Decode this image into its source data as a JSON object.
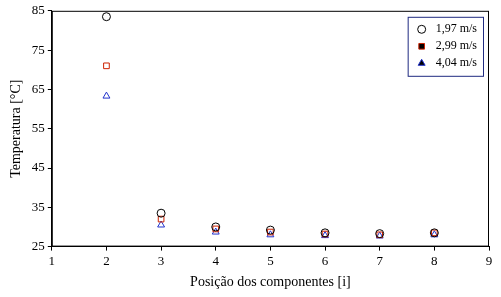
{
  "chart_data": {
    "type": "scatter",
    "x_label": "Posição dos componentes [i]",
    "y_label": "Temperatura [°C]",
    "xlim": [
      1,
      9
    ],
    "xticks": [
      1,
      2,
      3,
      4,
      5,
      6,
      7,
      8,
      9
    ],
    "ylim": [
      25,
      85
    ],
    "yticks": [
      25,
      35,
      45,
      55,
      65,
      75,
      85
    ],
    "grid": false,
    "legend": "upper right",
    "series": [
      {
        "name": "1,97 m/s",
        "color": "#000000",
        "marker": "circle",
        "x": [
          2,
          3,
          4,
          5,
          6,
          7,
          8
        ],
        "values": [
          83.5,
          33.5,
          30,
          29.2,
          28.5,
          28.3,
          28.5
        ]
      },
      {
        "name": "2,99 m/s",
        "color": "#cc2200",
        "marker": "square",
        "x": [
          2,
          3,
          4,
          5,
          6,
          7,
          8
        ],
        "values": [
          71,
          32,
          29.5,
          28.7,
          28.2,
          28,
          28.5
        ]
      },
      {
        "name": "4,04 m/s",
        "color": "#2233cc",
        "marker": "triangle",
        "x": [
          2,
          3,
          4,
          5,
          6,
          7,
          8
        ],
        "values": [
          63.3,
          30.5,
          28.7,
          28,
          27.8,
          27.7,
          28
        ]
      }
    ]
  }
}
